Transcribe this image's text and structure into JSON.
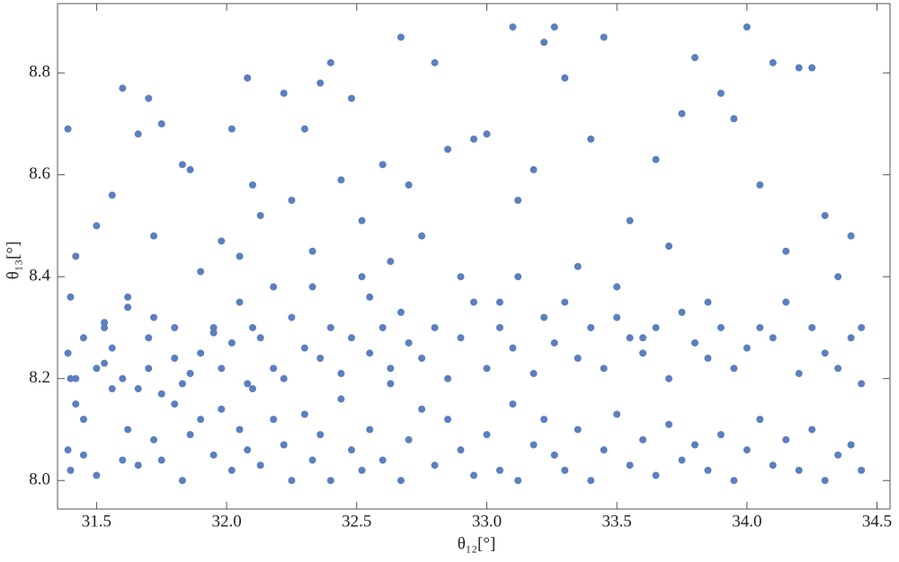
{
  "chart_data": {
    "type": "scatter",
    "x_label": "θ₁₂[°]",
    "y_label": "θ₁₃[°]",
    "color": "#5b7fbf",
    "xlim": [
      31.35,
      34.55
    ],
    "ylim": [
      7.944,
      8.936
    ],
    "xticks": [
      31.5,
      {
        "value": 32,
        "label": "32.0"
      },
      32.5,
      {
        "value": 33,
        "label": "33.0"
      },
      33.5,
      {
        "value": 34,
        "label": "34.0"
      },
      34.5
    ],
    "yticks": [
      {
        "value": 8,
        "label": "8.0"
      },
      8.2,
      8.4,
      8.6,
      8.8
    ],
    "x": [
      31.39,
      31.4,
      31.42,
      31.45,
      31.5,
      31.53,
      31.56,
      31.6,
      31.62,
      31.66,
      31.7,
      31.72,
      31.75,
      31.8,
      31.83,
      31.86,
      31.9,
      31.95,
      31.98,
      32.02,
      32.05,
      32.08,
      32.1,
      32.13,
      32.18,
      32.22,
      32.25,
      32.3,
      32.33,
      32.36,
      32.4,
      32.44,
      32.48,
      32.52,
      32.55,
      32.6,
      32.63,
      32.67,
      32.7,
      32.75,
      32.8,
      32.85,
      32.9,
      32.95,
      33.0,
      33.05,
      33.1,
      33.12,
      33.18,
      33.22,
      33.26,
      33.3,
      33.35,
      33.4,
      33.45,
      33.5,
      33.55,
      33.6,
      33.65,
      33.7,
      33.75,
      33.8,
      33.85,
      33.9,
      33.95,
      34.0,
      34.05,
      34.1,
      34.15,
      34.2,
      34.25,
      34.3,
      34.35,
      34.4,
      34.44,
      31.39,
      31.4,
      31.42,
      31.45,
      31.5,
      31.53,
      31.56,
      31.6,
      31.62,
      31.66,
      31.7,
      31.72,
      31.75,
      31.8,
      31.83,
      31.86,
      31.9,
      31.95,
      31.98,
      32.02,
      32.05,
      32.08,
      32.1,
      32.13,
      32.18,
      32.22,
      32.25,
      32.3,
      32.33,
      32.36,
      32.4,
      32.44,
      32.48,
      32.52,
      32.55,
      32.6,
      32.63,
      32.67,
      32.7,
      32.75,
      32.8,
      32.85,
      32.9,
      32.95,
      33.0,
      33.05,
      33.1,
      33.12,
      33.18,
      33.22,
      33.26,
      33.3,
      33.35,
      33.4,
      33.45,
      33.5,
      33.55,
      33.6,
      33.65,
      33.7,
      33.75,
      33.8,
      33.85,
      33.9,
      33.95,
      34.0,
      34.05,
      34.1,
      34.15,
      34.2,
      34.25,
      34.3,
      34.35,
      34.4,
      34.44,
      31.39,
      31.4,
      31.42,
      31.45,
      31.5,
      31.53,
      31.56,
      31.6,
      31.62,
      31.66,
      31.7,
      31.72,
      31.75,
      31.8,
      31.83,
      31.86,
      31.9,
      31.95,
      31.98,
      32.02,
      32.05,
      32.08,
      32.1,
      32.13,
      32.18,
      32.22,
      32.25,
      32.3,
      32.33,
      32.36,
      32.4,
      32.44,
      32.48,
      32.52,
      32.55,
      32.6,
      32.63,
      32.67,
      32.7,
      32.75,
      32.8,
      32.85,
      32.9,
      32.95,
      33.0,
      33.05,
      33.1,
      33.12,
      33.18,
      33.22,
      33.26,
      33.3,
      33.35,
      33.4,
      33.45,
      33.5,
      33.55,
      33.6,
      33.65,
      33.7,
      33.75,
      33.8,
      33.85,
      33.9,
      33.95,
      34.0,
      34.05,
      34.1,
      34.15,
      34.2,
      34.25,
      34.3,
      34.35,
      34.4,
      34.44
    ],
    "y": [
      8.06,
      8.02,
      8.15,
      8.05,
      8.01,
      8.23,
      8.18,
      8.04,
      8.1,
      8.03,
      8.22,
      8.08,
      8.04,
      8.15,
      8.0,
      8.09,
      8.12,
      8.05,
      8.14,
      8.02,
      8.1,
      8.06,
      8.18,
      8.03,
      8.12,
      8.07,
      8.0,
      8.13,
      8.04,
      8.09,
      8.0,
      8.16,
      8.06,
      8.02,
      8.1,
      8.04,
      8.19,
      8.0,
      8.08,
      8.14,
      8.03,
      8.12,
      8.06,
      8.01,
      8.09,
      8.02,
      8.15,
      8.0,
      8.07,
      8.12,
      8.05,
      8.02,
      8.1,
      8.0,
      8.06,
      8.13,
      8.03,
      8.08,
      8.01,
      8.11,
      8.04,
      8.07,
      8.02,
      8.09,
      8.0,
      8.06,
      8.12,
      8.03,
      8.08,
      8.02,
      8.1,
      8.0,
      8.05,
      8.07,
      8.02,
      8.69,
      8.36,
      8.44,
      8.28,
      8.5,
      8.31,
      8.56,
      8.77,
      8.34,
      8.68,
      8.75,
      8.48,
      8.7,
      8.3,
      8.62,
      8.61,
      8.41,
      8.29,
      8.47,
      8.69,
      8.44,
      8.79,
      8.58,
      8.52,
      8.38,
      8.76,
      8.55,
      8.69,
      8.45,
      8.78,
      8.82,
      8.59,
      8.75,
      8.51,
      8.36,
      8.62,
      8.43,
      8.87,
      8.58,
      8.48,
      8.82,
      8.65,
      8.4,
      8.67,
      8.68,
      8.35,
      8.89,
      8.55,
      8.61,
      8.86,
      8.89,
      8.79,
      8.42,
      8.67,
      8.87,
      8.32,
      8.51,
      8.28,
      8.63,
      8.46,
      8.72,
      8.83,
      8.35,
      8.76,
      8.71,
      8.89,
      8.58,
      8.82,
      8.45,
      8.81,
      8.81,
      8.52,
      8.4,
      8.48,
      8.3,
      8.25,
      8.2,
      8.2,
      8.12,
      8.22,
      8.3,
      8.26,
      8.2,
      8.36,
      8.18,
      8.28,
      8.32,
      8.17,
      8.24,
      8.19,
      8.21,
      8.25,
      8.3,
      8.22,
      8.27,
      8.35,
      8.19,
      8.3,
      8.28,
      8.22,
      8.2,
      8.32,
      8.26,
      8.38,
      8.24,
      8.3,
      8.21,
      8.28,
      8.4,
      8.25,
      8.3,
      8.22,
      8.33,
      8.27,
      8.24,
      8.3,
      8.2,
      8.28,
      8.35,
      8.22,
      8.3,
      8.26,
      8.4,
      8.21,
      8.32,
      8.27,
      8.35,
      8.24,
      8.3,
      8.22,
      8.38,
      8.28,
      8.25,
      8.3,
      8.2,
      8.33,
      8.27,
      8.24,
      8.3,
      8.22,
      8.26,
      8.3,
      8.28,
      8.35,
      8.21,
      8.3,
      8.25,
      8.22,
      8.28,
      8.19
    ]
  }
}
